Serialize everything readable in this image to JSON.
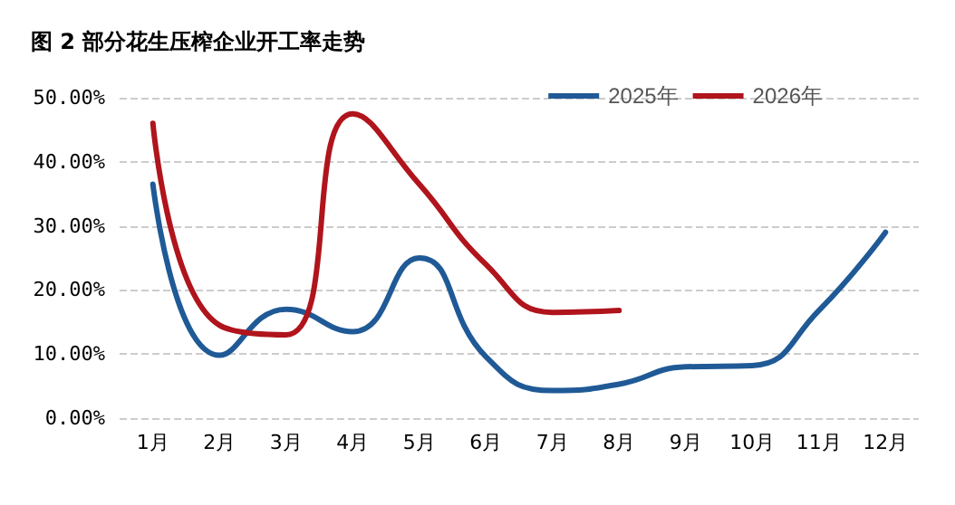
{
  "chart_data": {
    "type": "line",
    "title": "图 2 部分花生压榨企业开工率走势",
    "categories": [
      "1月",
      "2月",
      "3月",
      "4月",
      "5月",
      "6月",
      "7月",
      "8月",
      "9月",
      "10月",
      "11月",
      "12月"
    ],
    "series": [
      {
        "name": "2025年",
        "color": "#1f5a96",
        "values": [
          36.5,
          9.8,
          17,
          13.5,
          25,
          9.6,
          4.3,
          5.3,
          8,
          8.2,
          16.8,
          29
        ]
      },
      {
        "name": "2026年",
        "color": "#b0141c",
        "values": [
          46,
          14.5,
          13,
          47.5,
          36.5,
          24,
          16.5,
          16.8,
          null,
          null,
          null,
          null
        ]
      }
    ],
    "ylim": [
      0,
      50
    ],
    "yticks": [
      {
        "value": 0,
        "label": "0.00%"
      },
      {
        "value": 10,
        "label": "10.00%"
      },
      {
        "value": 20,
        "label": "20.00%"
      },
      {
        "value": 30,
        "label": "30.00%"
      },
      {
        "value": 40,
        "label": "40.00%"
      },
      {
        "value": 50,
        "label": "50.00%"
      }
    ],
    "grid": "y",
    "legend": "top right",
    "marker": "none",
    "line_style": "solid"
  }
}
